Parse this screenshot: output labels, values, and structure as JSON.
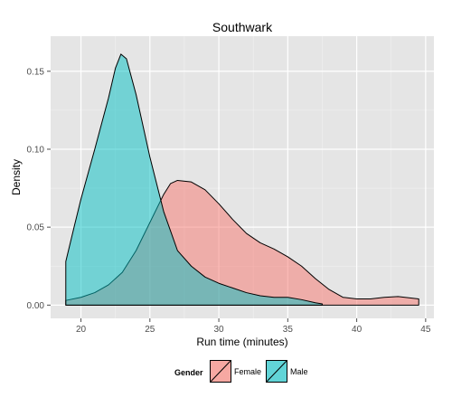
{
  "chart_data": {
    "type": "area",
    "title": "Southwark",
    "xlabel": "Run time (minutes)",
    "ylabel": "Density",
    "xlim": [
      17.8,
      45.6
    ],
    "ylim": [
      -0.0085,
      0.1725
    ],
    "x_ticks": [
      20,
      25,
      30,
      35,
      40,
      45
    ],
    "y_ticks": [
      0.0,
      0.05,
      0.1,
      0.15
    ],
    "y_tick_labels": [
      "0.00",
      "0.05",
      "0.10",
      "0.15"
    ],
    "grid": true,
    "legend_position": "bottom",
    "legend_title": "Gender",
    "series": [
      {
        "name": "Female",
        "color": "#F8766D",
        "points": [
          [
            18.9,
            0.003
          ],
          [
            20,
            0.005
          ],
          [
            21,
            0.008
          ],
          [
            22,
            0.013
          ],
          [
            23,
            0.021
          ],
          [
            24,
            0.035
          ],
          [
            25,
            0.053
          ],
          [
            26,
            0.071
          ],
          [
            26.5,
            0.078
          ],
          [
            27,
            0.08
          ],
          [
            28,
            0.079
          ],
          [
            29,
            0.074
          ],
          [
            30,
            0.065
          ],
          [
            31,
            0.055
          ],
          [
            32,
            0.046
          ],
          [
            33,
            0.04
          ],
          [
            34,
            0.036
          ],
          [
            35,
            0.031
          ],
          [
            36,
            0.025
          ],
          [
            37,
            0.017
          ],
          [
            38,
            0.01
          ],
          [
            39,
            0.005
          ],
          [
            40,
            0.004
          ],
          [
            41,
            0.004
          ],
          [
            42,
            0.005
          ],
          [
            43,
            0.0055
          ],
          [
            44,
            0.0045
          ],
          [
            44.5,
            0.004
          ]
        ]
      },
      {
        "name": "Male",
        "color": "#00BFC4",
        "points": [
          [
            18.9,
            0.028
          ],
          [
            19.5,
            0.05
          ],
          [
            20,
            0.068
          ],
          [
            21,
            0.1
          ],
          [
            22,
            0.133
          ],
          [
            22.5,
            0.152
          ],
          [
            22.9,
            0.161
          ],
          [
            23.3,
            0.158
          ],
          [
            24,
            0.135
          ],
          [
            25,
            0.095
          ],
          [
            26,
            0.06
          ],
          [
            27,
            0.035
          ],
          [
            28,
            0.025
          ],
          [
            29,
            0.018
          ],
          [
            30,
            0.014
          ],
          [
            31,
            0.011
          ],
          [
            32,
            0.008
          ],
          [
            33,
            0.006
          ],
          [
            34,
            0.005
          ],
          [
            35,
            0.005
          ],
          [
            36,
            0.0035
          ],
          [
            37,
            0.0015
          ],
          [
            37.5,
            0.0008
          ]
        ]
      }
    ]
  }
}
